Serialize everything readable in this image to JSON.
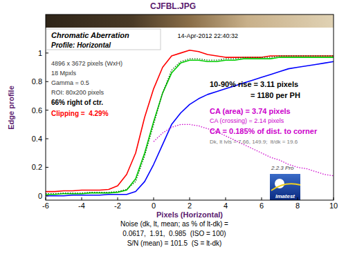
{
  "chart_data": {
    "type": "line",
    "title": "CJFBL.JPG",
    "x_label": "Pixels (Horizontal)",
    "y_label": "Edge profile",
    "x": [
      -6,
      -5.5,
      -5,
      -4.5,
      -4,
      -3.5,
      -3,
      -2.5,
      -2,
      -1.5,
      -1,
      -0.5,
      0,
      0.5,
      1,
      1.5,
      2,
      2.5,
      3,
      3.5,
      4,
      4.5,
      5,
      5.5,
      6,
      6.5,
      7,
      7.5,
      8,
      8.5,
      9,
      9.5,
      10
    ],
    "series": [
      {
        "color": "#ff0000",
        "line_style": "solid",
        "values": [
          0.03,
          0.03,
          0.035,
          0.035,
          0.04,
          0.04,
          0.04,
          0.045,
          0.07,
          0.15,
          0.3,
          0.55,
          0.75,
          0.9,
          0.98,
          1.0,
          1.02,
          1.01,
          0.99,
          0.98,
          0.97,
          0.97,
          0.97,
          0.97,
          0.97,
          0.98,
          0.98,
          0.98,
          0.98,
          0.98,
          0.98,
          0.98,
          0.98
        ]
      },
      {
        "color": "#00cc00",
        "line_style": "solid",
        "values": [
          0.01,
          0.01,
          0.015,
          0.015,
          0.015,
          0.02,
          0.02,
          0.02,
          0.025,
          0.04,
          0.12,
          0.3,
          0.52,
          0.72,
          0.86,
          0.93,
          0.95,
          0.95,
          0.94,
          0.94,
          0.95,
          0.95,
          0.96,
          0.96,
          0.96,
          0.96,
          0.97,
          0.97,
          0.97,
          0.97,
          0.97,
          0.97,
          0.97
        ]
      },
      {
        "color": "#006400",
        "line_style": "dotted",
        "values": [
          0.015,
          0.015,
          0.02,
          0.02,
          0.02,
          0.025,
          0.025,
          0.025,
          0.03,
          0.045,
          0.1,
          0.28,
          0.5,
          0.72,
          0.88,
          0.94,
          0.96,
          0.96,
          0.95,
          0.95,
          0.96,
          0.96,
          0.97,
          0.97,
          0.97,
          0.97,
          0.98,
          0.98,
          0.98,
          0.98,
          0.98,
          0.98,
          0.98
        ]
      },
      {
        "color": "#0000ff",
        "line_style": "solid",
        "values": [
          0.0,
          0.0,
          0.0,
          0.005,
          0.005,
          0.005,
          0.005,
          0.01,
          0.01,
          0.01,
          0.03,
          0.1,
          0.22,
          0.36,
          0.5,
          0.58,
          0.64,
          0.68,
          0.71,
          0.73,
          0.75,
          0.77,
          0.79,
          0.81,
          0.83,
          0.85,
          0.87,
          0.89,
          0.9,
          0.91,
          0.92,
          0.93,
          0.94
        ]
      },
      {
        "color": "#cc00cc",
        "line_style": "dotted",
        "values": [
          null,
          null,
          null,
          null,
          null,
          null,
          null,
          null,
          null,
          null,
          null,
          null,
          0.38,
          0.44,
          0.48,
          0.5,
          0.5,
          0.49,
          0.47,
          0.45,
          0.42,
          0.39,
          0.36,
          0.33,
          0.3,
          0.27,
          0.25,
          0.22,
          0.2,
          0.19,
          0.17,
          0.15,
          0.14
        ]
      }
    ],
    "xlim": [
      -6,
      10
    ],
    "xticks": [
      -6,
      -4,
      -2,
      0,
      2,
      4,
      6,
      8,
      10
    ],
    "ylim": [
      -0.03,
      1.27
    ],
    "yticks": [
      0,
      0.2,
      0.4,
      0.6,
      0.8,
      1
    ],
    "grid": false,
    "annotations": [
      "Chromatic Aberration",
      "14-Apr-2012 22:40:32",
      "Profile: Horizontal",
      "4896 x 3672 pixels (WxH)",
      "18 Mpxls",
      "Gamma = 0.5",
      "ROI: 80x200 pixels",
      "66% right of ctr.",
      "Clipping =  4.29%",
      "10-90% rise = 3.11 pixels",
      "= 1180 per PH",
      "CA (area) = 3.74 pixels",
      "CA (crossing) = 2.14 pixels",
      "CA = 0.185% of dist. to corner",
      "Dk, lt lvls = 7.66, 149.9;  lt/dk = 19.6",
      "2.2.3 Pro",
      "Imatest",
      "Noise (dk, lt, mean; as % of lt-dk) =",
      "0.0617,  1.91,  0.985  (ISO = 100)",
      "S/N (mean) = 101.5  (S = lt-dk)"
    ]
  }
}
